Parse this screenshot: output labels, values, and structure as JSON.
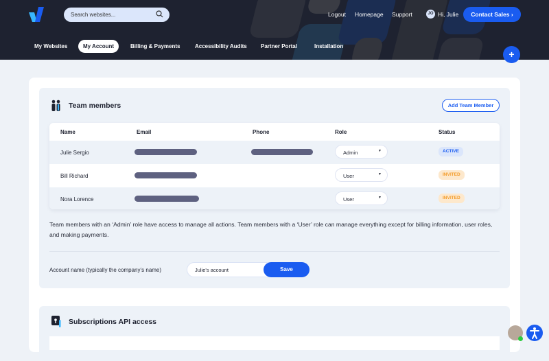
{
  "header": {
    "search_placeholder": "Search websites...",
    "links": [
      "Logout",
      "Homepage",
      "Support"
    ],
    "avatar_initials": "JO",
    "greeting": "Hi, Julie",
    "contact_sales": "Contact Sales",
    "contact_sales_chevron": "›",
    "add_button": "+"
  },
  "nav": {
    "tabs": [
      {
        "label": "My Websites",
        "active": false
      },
      {
        "label": "My Account",
        "active": true
      },
      {
        "label": "Billing & Payments",
        "active": false
      },
      {
        "label": "Accessibility Audits",
        "active": false
      },
      {
        "label": "Partner Portal",
        "active": false
      },
      {
        "label": "Installation",
        "active": false
      }
    ]
  },
  "team": {
    "title": "Team members",
    "add_button": "Add Team Member",
    "columns": [
      "Name",
      "Email",
      "Phone",
      "Role",
      "Status"
    ],
    "rows": [
      {
        "name": "Julie Sergio",
        "role": "Admin",
        "status": "ACTIVE"
      },
      {
        "name": "Bill Richard",
        "role": "User",
        "status": "INVITED"
      },
      {
        "name": "Nora Lorence",
        "role": "User",
        "status": "INVITED"
      }
    ],
    "description": "Team members with an ‘Admin’ role have access to manage all actions. Team members with a ‘User’ role can manage everything except for billing information, user roles, and making payments.",
    "account_label": "Account name (typically the company’s name)",
    "account_value": "Julie's account",
    "save": "Save"
  },
  "api": {
    "title": "Subscriptions API access"
  },
  "colors": {
    "header_bg": "#1e2230",
    "accent": "#1a5cf0",
    "active_badge_bg": "#dbe6fb",
    "invited_badge_bg": "#fde8cc",
    "invited_text": "#f39c2a"
  }
}
